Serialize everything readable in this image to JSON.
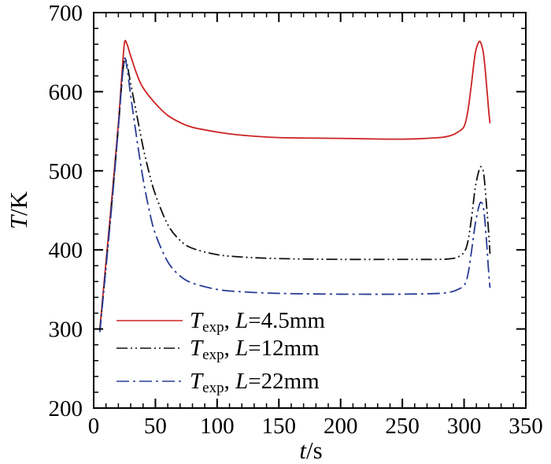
{
  "chart_data": {
    "type": "line",
    "xlabel": {
      "var": "t",
      "unit": "/s"
    },
    "ylabel": {
      "var": "T",
      "unit": "/K"
    },
    "xlim": [
      0,
      350
    ],
    "ylim": [
      200,
      700
    ],
    "xticks": [
      0,
      50,
      100,
      150,
      200,
      250,
      300,
      350
    ],
    "yticks": [
      200,
      300,
      400,
      500,
      600,
      700
    ],
    "grid": false,
    "legend_position": "bottom-left",
    "series": [
      {
        "name": "Texp, L=4.5mm",
        "legend": {
          "var": "T",
          "sub": "exp",
          "sep": ", ",
          "param": "L",
          "rest": "=4.5mm"
        },
        "color": "#cc2222",
        "dash": "solid",
        "x": [
          5,
          10,
          15,
          20,
          23,
          25,
          27,
          30,
          35,
          40,
          50,
          60,
          70,
          80,
          100,
          120,
          150,
          200,
          250,
          280,
          290,
          295,
          300,
          303,
          306,
          309,
          312,
          314,
          316,
          318,
          320,
          321
        ],
        "y": [
          300,
          385,
          470,
          560,
          625,
          662,
          660,
          645,
          622,
          605,
          585,
          570,
          561,
          555,
          549,
          545,
          542,
          541,
          540,
          542,
          545,
          549,
          556,
          575,
          610,
          648,
          663,
          660,
          645,
          612,
          575,
          560
        ]
      },
      {
        "name": "Texp, L=12mm",
        "legend": {
          "var": "T",
          "sub": "exp",
          "sep": ", ",
          "param": "L",
          "rest": "=12mm"
        },
        "color": "#111111",
        "dash": "dashdotdot",
        "x": [
          5,
          10,
          15,
          20,
          23,
          25,
          27,
          30,
          35,
          40,
          45,
          50,
          60,
          70,
          80,
          100,
          120,
          150,
          200,
          250,
          280,
          290,
          295,
          300,
          303,
          306,
          309,
          312,
          314,
          316,
          318,
          320,
          321
        ],
        "y": [
          298,
          380,
          465,
          555,
          615,
          640,
          635,
          610,
          570,
          530,
          497,
          470,
          432,
          412,
          402,
          394,
          391,
          389,
          388,
          388,
          388,
          389,
          391,
          397,
          410,
          440,
          478,
          500,
          505,
          495,
          460,
          420,
          395
        ]
      },
      {
        "name": "Texp, L=22mm",
        "legend": {
          "var": "T",
          "sub": "exp",
          "sep": ", ",
          "param": "L",
          "rest": "=22mm"
        },
        "color": "#2a3c96",
        "dash": "dashdot",
        "x": [
          5,
          10,
          15,
          20,
          23,
          25,
          27,
          30,
          35,
          40,
          45,
          50,
          60,
          70,
          80,
          100,
          120,
          150,
          200,
          250,
          280,
          290,
          295,
          300,
          303,
          306,
          309,
          312,
          314,
          316,
          318,
          320,
          321
        ],
        "y": [
          296,
          378,
          462,
          555,
          615,
          642,
          630,
          595,
          540,
          490,
          450,
          420,
          385,
          367,
          358,
          350,
          347,
          345,
          344,
          344,
          345,
          347,
          350,
          355,
          368,
          398,
          432,
          455,
          460,
          450,
          415,
          370,
          352
        ]
      }
    ]
  }
}
